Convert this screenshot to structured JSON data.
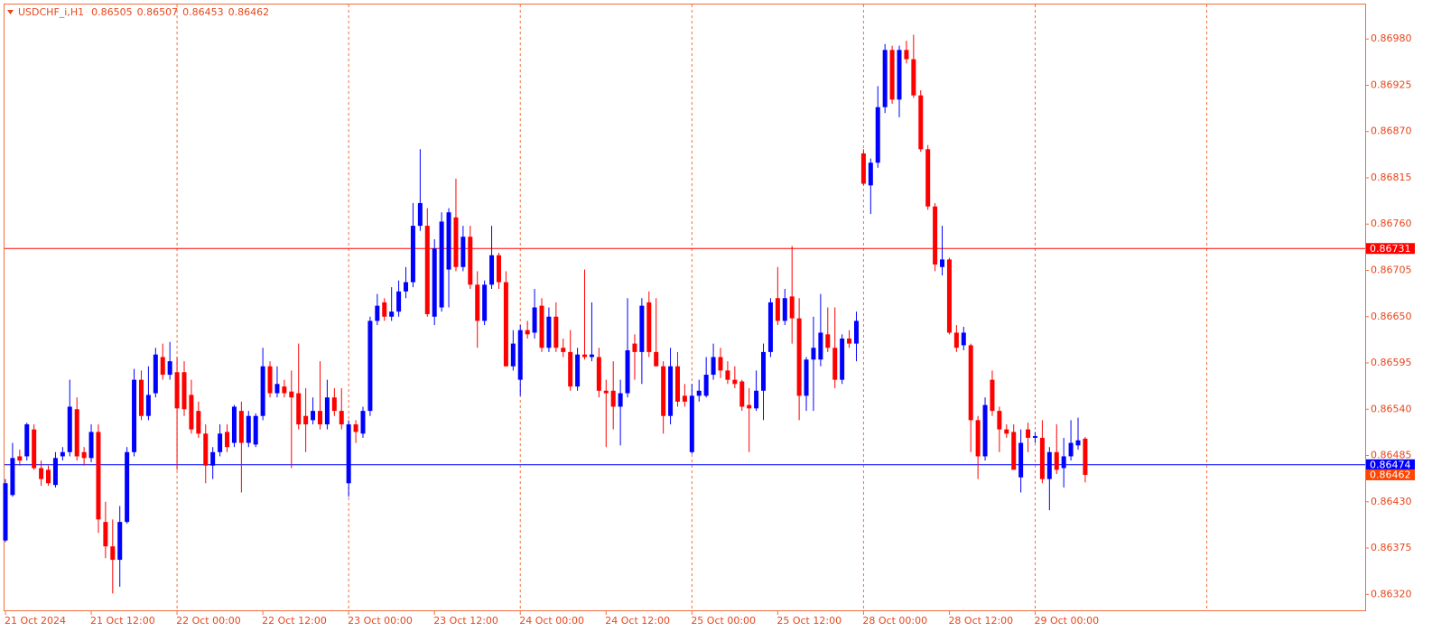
{
  "chart_data": {
    "type": "candlestick",
    "title": "USDCHF_i,H1",
    "categories": [
      "21 Oct 2024",
      null,
      null,
      null,
      null,
      null,
      null,
      null,
      null,
      null,
      null,
      null,
      "21 Oct 12:00",
      null,
      null,
      null,
      null,
      null,
      null,
      null,
      null,
      null,
      null,
      null,
      "22 Oct 00:00",
      null,
      null,
      null,
      null,
      null,
      null,
      null,
      null,
      null,
      null,
      null,
      "22 Oct 12:00",
      null,
      null,
      null,
      null,
      null,
      null,
      null,
      null,
      null,
      null,
      null,
      "23 Oct 00:00",
      null,
      null,
      null,
      null,
      null,
      null,
      null,
      null,
      null,
      null,
      null,
      "23 Oct 12:00",
      null,
      null,
      null,
      null,
      null,
      null,
      null,
      null,
      null,
      null,
      null,
      "24 Oct 00:00",
      null,
      null,
      null,
      null,
      null,
      null,
      null,
      null,
      null,
      null,
      null,
      "24 Oct 12:00",
      null,
      null,
      null,
      null,
      null,
      null,
      null,
      null,
      null,
      null,
      null,
      "25 Oct 00:00",
      null,
      null,
      null,
      null,
      null,
      null,
      null,
      null,
      null,
      null,
      null,
      "25 Oct 12:00",
      null,
      null,
      null,
      null,
      null,
      null,
      null,
      null,
      null,
      null,
      null,
      "28 Oct 00:00",
      null,
      null,
      null,
      null,
      null,
      null,
      null,
      null,
      null,
      null,
      null,
      "28 Oct 12:00",
      null,
      null,
      null,
      null,
      null,
      null,
      null,
      null,
      null,
      null,
      null,
      "29 Oct 00:00",
      null,
      null,
      null,
      null,
      null,
      null,
      null
    ],
    "open": [
      0.86384,
      0.86438,
      0.86484,
      0.86484,
      0.86516,
      0.8647,
      0.86468,
      0.8645,
      0.86484,
      0.86489,
      0.8654,
      0.86489,
      0.86482,
      0.86513,
      0.86406,
      0.86377,
      0.86361,
      0.86406,
      0.86489,
      0.86575,
      0.86532,
      0.86559,
      0.86602,
      0.86581,
      0.86584,
      0.86584,
      0.86557,
      0.86538,
      0.86511,
      0.86473,
      0.86489,
      0.86513,
      0.865,
      0.86538,
      0.865,
      0.86498,
      0.86532,
      0.86591,
      0.86559,
      0.86567,
      0.86561,
      0.86559,
      0.86532,
      0.86527,
      0.86538,
      0.86522,
      0.86554,
      0.86538,
      0.86452,
      0.86522,
      0.86511,
      0.86538,
      0.86645,
      0.86667,
      0.8665,
      0.86656,
      0.8668,
      0.86691,
      0.86758,
      0.86758,
      0.8665,
      0.86661,
      0.86706,
      0.86768,
      0.86709,
      0.86745,
      0.86688,
      0.86645,
      0.86688,
      0.86723,
      0.86691,
      0.86591,
      0.86575,
      0.86634,
      0.86631,
      0.86663,
      0.86613,
      0.8665,
      0.86613,
      0.86608,
      0.86567,
      0.86605,
      0.86602,
      0.86602,
      0.86562,
      0.86562,
      0.86543,
      0.86559,
      0.86618,
      0.86608,
      0.86667,
      0.86608,
      0.86591,
      0.86532,
      0.86591,
      0.86556,
      0.86489,
      0.86556,
      0.86556,
      0.86581,
      0.86602,
      0.86586,
      0.86575,
      0.86573,
      0.86545,
      0.86541,
      0.86562,
      0.86608,
      0.86672,
      0.86645,
      0.86674,
      0.86648,
      0.86556,
      0.86599,
      0.86599,
      0.86629,
      0.86613,
      0.86575,
      0.86624,
      0.86618,
      0.86844,
      0.86806,
      0.86833,
      0.86899,
      0.86967,
      0.86908,
      0.86967,
      0.86956,
      0.86913,
      0.86849,
      0.86781,
      0.86709,
      0.86718,
      0.86631,
      0.86616,
      0.86616,
      0.86527,
      0.86484,
      0.86575,
      0.86538,
      0.86516,
      0.86513,
      0.86459,
      0.86516,
      0.86506,
      0.86506,
      0.86457,
      0.86489,
      0.8647,
      0.86484,
      0.86497,
      0.86505
    ],
    "high": [
      0.86457,
      0.865,
      0.86492,
      0.86524,
      0.86522,
      0.86479,
      0.86473,
      0.86489,
      0.86495,
      0.86575,
      0.86554,
      0.86495,
      0.86522,
      0.86522,
      0.8643,
      0.86409,
      0.86425,
      0.86495,
      0.86588,
      0.86586,
      0.86591,
      0.86613,
      0.86618,
      0.8662,
      0.86602,
      0.86597,
      0.86575,
      0.86549,
      0.86522,
      0.86495,
      0.86522,
      0.86522,
      0.86545,
      0.86549,
      0.86538,
      0.86535,
      0.86613,
      0.86597,
      0.86591,
      0.86575,
      0.86586,
      0.86618,
      0.86565,
      0.86554,
      0.86597,
      0.86575,
      0.86565,
      0.86565,
      0.86527,
      0.86527,
      0.86543,
      0.8665,
      0.86677,
      0.86672,
      0.86685,
      0.86693,
      0.86709,
      0.86785,
      0.86849,
      0.86779,
      0.86742,
      0.86774,
      0.86779,
      0.86814,
      0.86758,
      0.86758,
      0.86704,
      0.86693,
      0.86758,
      0.86726,
      0.86704,
      0.86634,
      0.8664,
      0.86645,
      0.86683,
      0.86672,
      0.86661,
      0.86667,
      0.86624,
      0.86634,
      0.86613,
      0.86706,
      0.86667,
      0.86613,
      0.86575,
      0.86597,
      0.86575,
      0.86672,
      0.86629,
      0.86672,
      0.8668,
      0.86672,
      0.86597,
      0.86613,
      0.86608,
      0.8657,
      0.8657,
      0.86575,
      0.86602,
      0.86618,
      0.86613,
      0.86597,
      0.86591,
      0.86575,
      0.86565,
      0.86586,
      0.86618,
      0.86672,
      0.86709,
      0.86683,
      0.86734,
      0.86672,
      0.86602,
      0.8665,
      0.86677,
      0.86661,
      0.86661,
      0.86629,
      0.86634,
      0.86656,
      0.86849,
      0.86838,
      0.86924,
      0.86974,
      0.86972,
      0.86972,
      0.86978,
      0.86985,
      0.86919,
      0.86854,
      0.86785,
      0.86758,
      0.8672,
      0.8664,
      0.86638,
      0.86618,
      0.86532,
      0.86554,
      0.86586,
      0.86543,
      0.86522,
      0.86522,
      0.86516,
      0.86524,
      0.86513,
      0.86527,
      0.86495,
      0.86522,
      0.86506,
      0.86527,
      0.8653,
      0.86507
    ],
    "low": [
      0.86382,
      0.86436,
      0.86473,
      0.86479,
      0.86468,
      0.86449,
      0.86449,
      0.86447,
      0.86479,
      0.86484,
      0.86479,
      0.86473,
      0.86477,
      0.86393,
      0.86363,
      0.86321,
      0.86329,
      0.86404,
      0.86484,
      0.86527,
      0.86527,
      0.86554,
      0.86575,
      0.86575,
      0.86468,
      0.86532,
      0.86511,
      0.86506,
      0.86452,
      0.86457,
      0.86484,
      0.86489,
      0.86495,
      0.86441,
      0.86495,
      0.86495,
      0.86527,
      0.86554,
      0.86554,
      0.86554,
      0.8647,
      0.86516,
      0.86489,
      0.86522,
      0.86516,
      0.86516,
      0.86532,
      0.86516,
      0.86436,
      0.865,
      0.86506,
      0.86532,
      0.8664,
      0.86645,
      0.86645,
      0.8665,
      0.86672,
      0.86685,
      0.86752,
      0.8665,
      0.8664,
      0.86656,
      0.86661,
      0.86704,
      0.86704,
      0.86683,
      0.86613,
      0.8664,
      0.86683,
      0.86683,
      0.86591,
      0.86586,
      0.86556,
      0.86624,
      0.86624,
      0.86608,
      0.86608,
      0.86608,
      0.86602,
      0.86562,
      0.86562,
      0.86599,
      0.86597,
      0.86554,
      0.86495,
      0.86516,
      0.86497,
      0.86554,
      0.86575,
      0.8657,
      0.86602,
      0.86597,
      0.86511,
      0.86522,
      0.86543,
      0.86543,
      0.86487,
      0.86549,
      0.86554,
      0.86575,
      0.86577,
      0.8657,
      0.86565,
      0.86538,
      0.86489,
      0.86538,
      0.86527,
      0.86602,
      0.8664,
      0.8664,
      0.86618,
      0.86527,
      0.86538,
      0.86538,
      0.86591,
      0.86608,
      0.86565,
      0.8657,
      0.86613,
      0.86597,
      0.86806,
      0.86772,
      0.86827,
      0.86892,
      0.86903,
      0.86887,
      0.86951,
      0.8691,
      0.86846,
      0.86777,
      0.86704,
      0.86699,
      0.86629,
      0.86608,
      0.8661,
      0.86489,
      0.86457,
      0.86479,
      0.86532,
      0.86489,
      0.86506,
      0.86468,
      0.86441,
      0.86489,
      0.865,
      0.86452,
      0.8642,
      0.86463,
      0.86447,
      0.86479,
      0.86492,
      0.86453
    ],
    "close": [
      0.86452,
      0.86482,
      0.86479,
      0.86522,
      0.8647,
      0.86457,
      0.86452,
      0.86482,
      0.86489,
      0.86543,
      0.86484,
      0.86482,
      0.86513,
      0.86409,
      0.86377,
      0.86361,
      0.86406,
      0.86489,
      0.86575,
      0.86532,
      0.86557,
      0.86605,
      0.86581,
      0.86597,
      0.86541,
      0.8654,
      0.86516,
      0.86511,
      0.86473,
      0.86489,
      0.86511,
      0.86495,
      0.86543,
      0.865,
      0.86532,
      0.86532,
      0.86591,
      0.86559,
      0.8657,
      0.86559,
      0.86554,
      0.86522,
      0.86522,
      0.86538,
      0.86522,
      0.86554,
      0.86538,
      0.86522,
      0.86522,
      0.86513,
      0.86538,
      0.86645,
      0.86663,
      0.8665,
      0.86656,
      0.8668,
      0.86691,
      0.86758,
      0.86785,
      0.86653,
      0.86731,
      0.86763,
      0.86774,
      0.86709,
      0.86745,
      0.86688,
      0.86645,
      0.86688,
      0.86723,
      0.86691,
      0.86591,
      0.86618,
      0.86634,
      0.86629,
      0.86661,
      0.86613,
      0.8665,
      0.86613,
      0.86608,
      0.86567,
      0.86605,
      0.86602,
      0.86605,
      0.86562,
      0.86559,
      0.86543,
      0.86559,
      0.8661,
      0.86608,
      0.86663,
      0.86608,
      0.86591,
      0.86532,
      0.86591,
      0.86549,
      0.86549,
      0.86556,
      0.86562,
      0.86581,
      0.86602,
      0.86586,
      0.86575,
      0.8657,
      0.86543,
      0.86541,
      0.86562,
      0.86608,
      0.86667,
      0.86645,
      0.86672,
      0.86648,
      0.86556,
      0.86599,
      0.86613,
      0.86631,
      0.86613,
      0.86575,
      0.86624,
      0.86618,
      0.86645,
      0.86808,
      0.86833,
      0.86899,
      0.86967,
      0.86908,
      0.86967,
      0.86956,
      0.86913,
      0.86849,
      0.86781,
      0.86712,
      0.86718,
      0.86631,
      0.86613,
      0.86631,
      0.86527,
      0.86484,
      0.86545,
      0.86538,
      0.86516,
      0.86511,
      0.86468,
      0.865,
      0.86506,
      0.86508,
      0.86457,
      0.86489,
      0.86468,
      0.86484,
      0.865,
      0.86503,
      0.86462
    ],
    "up_color": "#0000ff",
    "down_color": "#ff0000",
    "ylim": [
      0.86301,
      0.87021
    ],
    "yticks": [
      {
        "value": 0.8632,
        "label": "0.86320"
      },
      0.86375,
      {
        "value": 0.8643,
        "label": "0.86430"
      },
      0.86485,
      {
        "value": 0.8654,
        "label": "0.86540"
      },
      0.86595,
      {
        "value": 0.8665,
        "label": "0.86650"
      },
      0.86705,
      {
        "value": 0.8676,
        "label": "0.86760"
      },
      0.86815,
      {
        "value": 0.8687,
        "label": "0.86870"
      },
      0.86925,
      {
        "value": 0.8698,
        "label": "0.86980"
      }
    ],
    "hlines": [
      {
        "value": 0.86731,
        "color": "#ff0000"
      },
      {
        "value": 0.86474,
        "color": "#0000ff"
      }
    ],
    "last_price_color": "#ff4500",
    "grid": true
  }
}
